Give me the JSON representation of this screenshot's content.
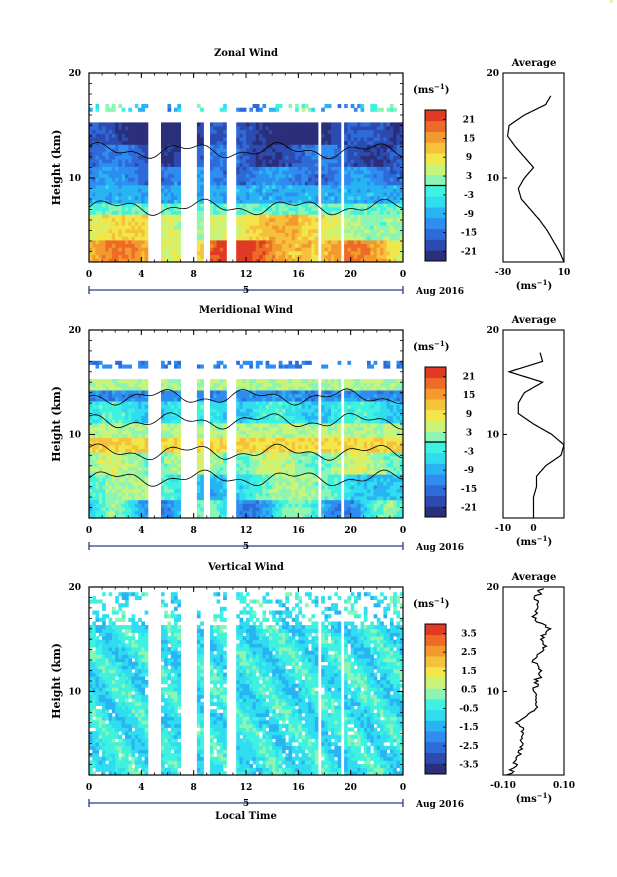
{
  "colors": {
    "scale": [
      "#2b2f7a",
      "#2c4bb0",
      "#2f6bd8",
      "#2f8cf0",
      "#28b4f2",
      "#30dcef",
      "#3ff2df",
      "#8cf5b4",
      "#c9f47a",
      "#f1e74a",
      "#f6c23c",
      "#f39a2e",
      "#ee6b27",
      "#e03a24"
    ],
    "contour": "#000000",
    "axis": "#000000",
    "date_bar": "#2a3a8c"
  },
  "chart_data": [
    {
      "id": "zonal",
      "type": "heatmap",
      "title": "Zonal Wind",
      "ylabel": "Height (km)",
      "unit_label": "(ms-1)",
      "x_ticks": [
        "0",
        "4",
        "8",
        "12",
        "16",
        "20",
        "0"
      ],
      "x_range": [
        0,
        24
      ],
      "y_range": [
        2,
        20
      ],
      "y_ticks": [
        "20",
        "10"
      ],
      "date_label": "Aug 2016",
      "day_label": "5",
      "colorbar_ticks": [
        "21",
        "15",
        "9",
        "3",
        "-3",
        "-9",
        "-15",
        "-21"
      ],
      "colorbar_range": [
        -24,
        24
      ],
      "colorbar_line": 0,
      "gaps_hours": [
        [
          4.6,
          5.4
        ],
        [
          7.0,
          8.3
        ],
        [
          8.8,
          9.3
        ],
        [
          10.6,
          11.2
        ],
        [
          17.4,
          17.8
        ],
        [
          19.3,
          19.6
        ]
      ],
      "data_top_km": 16.8,
      "profile": {
        "title": "Average",
        "unit_label": "(ms-1)",
        "x_ticks": [
          "-30",
          "10"
        ],
        "x_range": [
          -30,
          10
        ],
        "y_ticks": [
          "20",
          "10"
        ],
        "height_km": [
          2,
          3,
          4,
          5,
          6,
          7,
          8,
          9,
          10,
          11,
          12,
          13,
          14,
          15,
          16,
          17,
          18
        ],
        "values": [
          10,
          7,
          3,
          -1,
          -6,
          -12,
          -18,
          -20,
          -16,
          -10,
          -16,
          -22,
          -27,
          -26,
          -16,
          -2,
          2
        ]
      }
    },
    {
      "id": "meridional",
      "type": "heatmap",
      "title": "Meridional Wind",
      "ylabel": "Height (km)",
      "unit_label": "(ms-1)",
      "x_ticks": [
        "0",
        "4",
        "8",
        "12",
        "16",
        "20",
        "0"
      ],
      "x_range": [
        0,
        24
      ],
      "y_range": [
        2,
        20
      ],
      "y_ticks": [
        "20",
        "10"
      ],
      "date_label": "Aug 2016",
      "day_label": "5",
      "colorbar_ticks": [
        "21",
        "15",
        "9",
        "3",
        "-3",
        "-9",
        "-15",
        "-21"
      ],
      "colorbar_range": [
        -24,
        24
      ],
      "colorbar_line": 0,
      "gaps_hours": [
        [
          4.6,
          5.4
        ],
        [
          7.0,
          8.3
        ],
        [
          8.8,
          9.3
        ],
        [
          10.6,
          11.2
        ],
        [
          17.4,
          17.8
        ],
        [
          19.3,
          19.6
        ]
      ],
      "data_top_km": 16.8,
      "profile": {
        "title": "Average",
        "unit_label": "(ms-1)",
        "x_ticks": [
          "-10",
          "0"
        ],
        "x_range": [
          -10,
          10
        ],
        "y_ticks": [
          "20",
          "10"
        ],
        "height_km": [
          2,
          3,
          4,
          5,
          6,
          7,
          8,
          9,
          10,
          11,
          12,
          13,
          14,
          15,
          16,
          17,
          18
        ],
        "values": [
          0,
          0,
          0,
          1,
          1,
          4,
          9,
          10,
          6,
          0,
          -5,
          -5,
          -3,
          3,
          -8,
          3,
          2
        ]
      }
    },
    {
      "id": "vertical",
      "type": "heatmap",
      "title": "Vertical Wind",
      "ylabel": "Height (km)",
      "xlabel": "Local Time",
      "unit_label": "(ms-1)",
      "x_ticks": [
        "0",
        "4",
        "8",
        "12",
        "16",
        "20",
        "0"
      ],
      "x_range": [
        0,
        24
      ],
      "y_range": [
        2,
        20
      ],
      "y_ticks": [
        "20",
        "10"
      ],
      "date_label": "Aug 2016",
      "day_label": "5",
      "colorbar_ticks": [
        "3.5",
        "2.5",
        "1.5",
        "0.5",
        "-0.5",
        "-1.5",
        "-2.5",
        "-3.5"
      ],
      "colorbar_range": [
        -4,
        4
      ],
      "gaps_hours": [
        [
          4.6,
          5.4
        ],
        [
          7.0,
          8.3
        ],
        [
          8.8,
          9.3
        ],
        [
          10.6,
          11.2
        ],
        [
          17.4,
          17.8
        ],
        [
          19.3,
          19.6
        ]
      ],
      "data_top_km": 19.5,
      "profile": {
        "title": "Average",
        "unit_label": "(ms-1)",
        "x_ticks": [
          "-0.10",
          "0.10"
        ],
        "x_range": [
          -0.1,
          0.1
        ],
        "y_ticks": [
          "20",
          "10"
        ],
        "height_km": [
          2,
          3,
          4,
          5,
          6,
          7,
          8,
          9,
          10,
          11,
          12,
          13,
          14,
          15,
          16,
          17,
          18,
          19,
          20
        ],
        "values": [
          -0.08,
          -0.06,
          -0.05,
          -0.04,
          -0.03,
          -0.05,
          0.0,
          0.01,
          0.0,
          0.01,
          0.03,
          0.0,
          0.04,
          0.02,
          0.05,
          0.0,
          0.02,
          0.01,
          0.03
        ]
      }
    }
  ]
}
